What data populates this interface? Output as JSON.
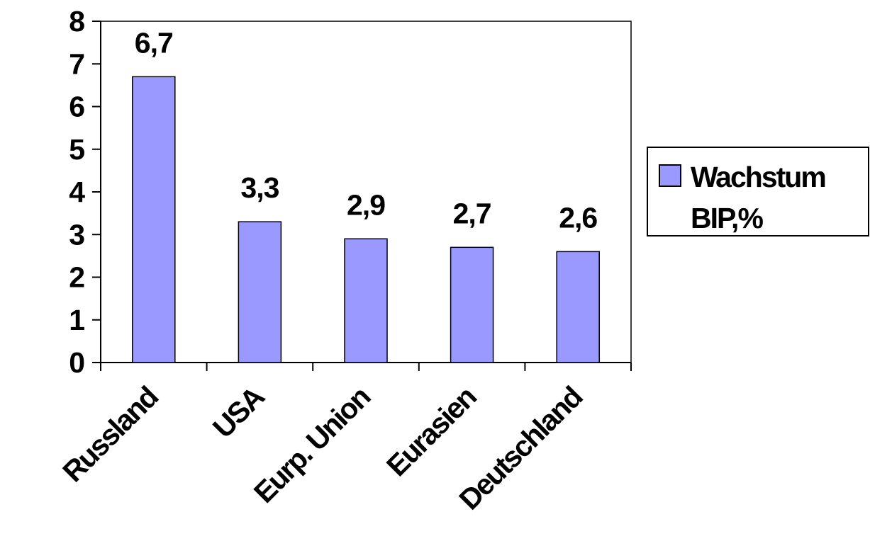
{
  "chart_data": {
    "type": "bar",
    "categories": [
      "Russland",
      "USA",
      "Eurp. Union",
      "Eurasien",
      "Deutschland"
    ],
    "series": [
      {
        "name": "Wachstum BIP,%",
        "values": [
          6.7,
          3.3,
          2.9,
          2.7,
          2.6
        ],
        "color": "#9999ff"
      }
    ],
    "data_labels": [
      "6,7",
      "3,3",
      "2,9",
      "2,7",
      "2,6"
    ],
    "ylim": [
      0,
      8
    ],
    "yticks": [
      "0",
      "1",
      "2",
      "3",
      "4",
      "5",
      "6",
      "7",
      "8"
    ],
    "legend": {
      "position": "right",
      "lines": [
        "Wachstum",
        "BIP,%"
      ]
    },
    "grid": false,
    "title": "",
    "xlabel": "",
    "ylabel": ""
  }
}
